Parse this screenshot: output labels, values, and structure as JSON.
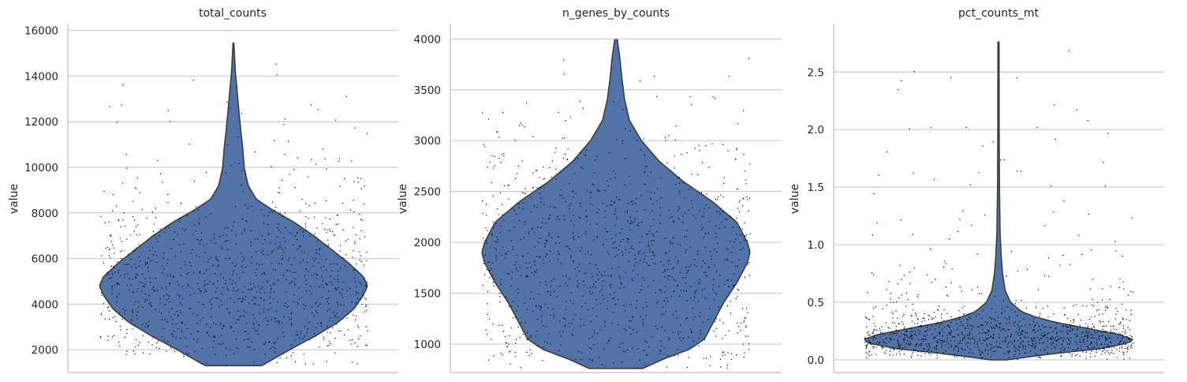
{
  "chart_data": [
    {
      "type": "violin",
      "title": "total_counts",
      "ylabel": "value",
      "ylim": [
        1000,
        16300
      ],
      "yticks": [
        2000,
        4000,
        6000,
        8000,
        10000,
        12000,
        14000,
        16000
      ],
      "tick_labels": [
        "2000",
        "4000",
        "6000",
        "8000",
        "10000",
        "12000",
        "14000",
        "16000"
      ],
      "grid": true,
      "violin": {
        "min": 1300,
        "max": 15450,
        "color": "#4c6ea4",
        "profile": [
          [
            1300,
            0.21
          ],
          [
            1700,
            0.33
          ],
          [
            2100,
            0.45
          ],
          [
            2600,
            0.61
          ],
          [
            3200,
            0.78
          ],
          [
            3800,
            0.9
          ],
          [
            4400,
            0.97
          ],
          [
            4800,
            1.0
          ],
          [
            5200,
            0.97
          ],
          [
            5800,
            0.86
          ],
          [
            6400,
            0.73
          ],
          [
            7000,
            0.6
          ],
          [
            7600,
            0.45
          ],
          [
            8100,
            0.3
          ],
          [
            8600,
            0.17
          ],
          [
            9200,
            0.11
          ],
          [
            10000,
            0.08
          ],
          [
            10800,
            0.07
          ],
          [
            11600,
            0.055
          ],
          [
            12500,
            0.04
          ],
          [
            13300,
            0.028
          ],
          [
            14200,
            0.014
          ],
          [
            15450,
            0.003
          ]
        ]
      },
      "points": {
        "count": 1100,
        "color": "#000000"
      }
    },
    {
      "type": "violin",
      "title": "n_genes_by_counts",
      "ylabel": "value",
      "ylim": [
        720,
        4150
      ],
      "yticks": [
        1000,
        1500,
        2000,
        2500,
        3000,
        3500,
        4000
      ],
      "tick_labels": [
        "1000",
        "1500",
        "2000",
        "2500",
        "3000",
        "3500",
        "4000"
      ],
      "grid": true,
      "violin": {
        "min": 760,
        "max": 3990,
        "color": "#4c6ea4",
        "profile": [
          [
            760,
            0.2
          ],
          [
            850,
            0.35
          ],
          [
            950,
            0.55
          ],
          [
            1050,
            0.66
          ],
          [
            1200,
            0.72
          ],
          [
            1400,
            0.8
          ],
          [
            1600,
            0.9
          ],
          [
            1800,
            0.98
          ],
          [
            1900,
            1.0
          ],
          [
            2000,
            0.98
          ],
          [
            2200,
            0.9
          ],
          [
            2400,
            0.72
          ],
          [
            2600,
            0.5
          ],
          [
            2800,
            0.32
          ],
          [
            3000,
            0.19
          ],
          [
            3200,
            0.1
          ],
          [
            3400,
            0.065
          ],
          [
            3600,
            0.045
          ],
          [
            3800,
            0.03
          ],
          [
            3990,
            0.01
          ]
        ]
      },
      "points": {
        "count": 1150,
        "color": "#000000"
      }
    },
    {
      "type": "violin",
      "title": "pct_counts_mt",
      "ylabel": "value",
      "ylim": [
        -0.11,
        2.92
      ],
      "yticks": [
        0.0,
        0.5,
        1.0,
        1.5,
        2.0,
        2.5
      ],
      "tick_labels": [
        "0.0",
        "0.5",
        "1.0",
        "1.5",
        "2.0",
        "2.5"
      ],
      "grid": true,
      "violin": {
        "min": 0.0,
        "max": 2.76,
        "color": "#4c6ea4",
        "profile": [
          [
            0.0,
            0.06
          ],
          [
            0.05,
            0.38
          ],
          [
            0.1,
            0.78
          ],
          [
            0.15,
            0.98
          ],
          [
            0.18,
            1.0
          ],
          [
            0.22,
            0.9
          ],
          [
            0.27,
            0.68
          ],
          [
            0.32,
            0.45
          ],
          [
            0.37,
            0.28
          ],
          [
            0.42,
            0.17
          ],
          [
            0.5,
            0.09
          ],
          [
            0.6,
            0.05
          ],
          [
            0.75,
            0.03
          ],
          [
            0.9,
            0.02
          ],
          [
            1.1,
            0.012
          ],
          [
            1.5,
            0.007
          ],
          [
            2.0,
            0.005
          ],
          [
            2.76,
            0.004
          ]
        ]
      },
      "points": {
        "count": 1150,
        "color": "#000000"
      }
    }
  ]
}
